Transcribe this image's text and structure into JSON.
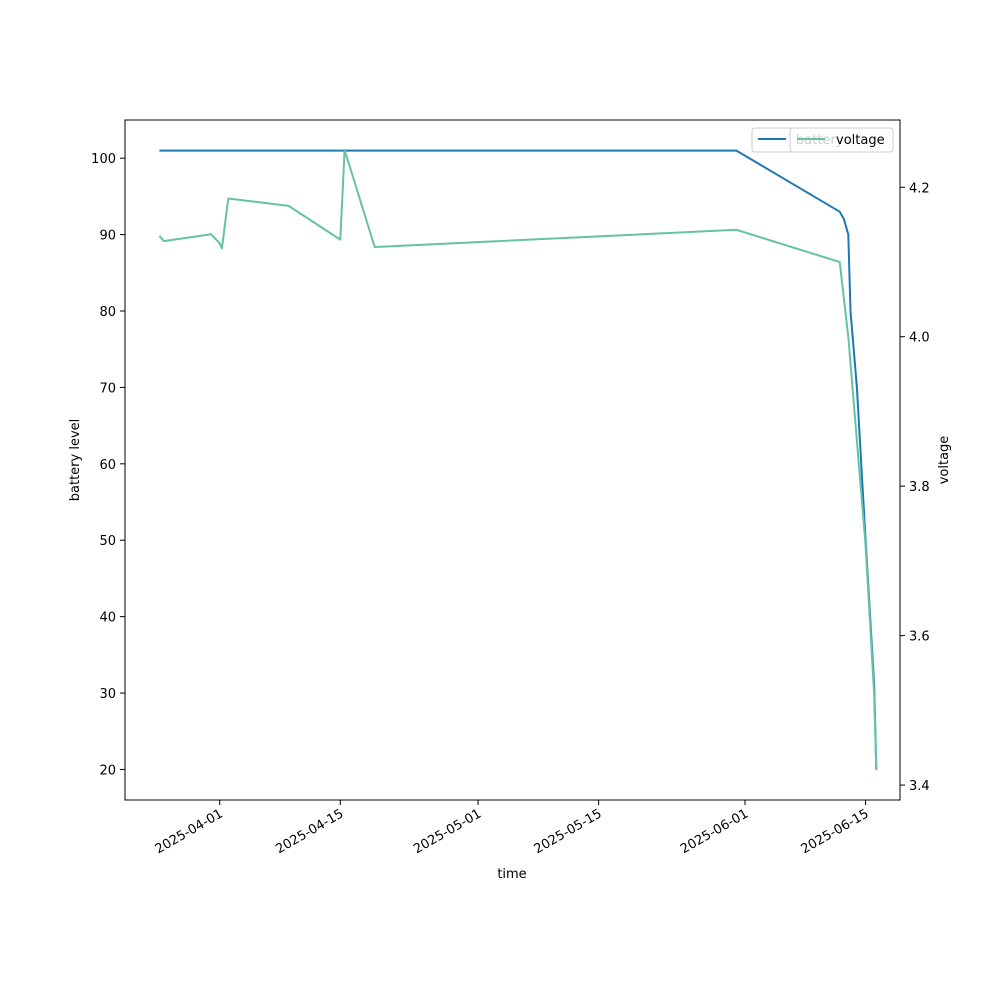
{
  "chart_data": {
    "type": "line",
    "xlabel": "time",
    "ylabel_left": "battery level",
    "ylabel_right": "voltage",
    "x_ticks": [
      "2025-04-01",
      "2025-04-15",
      "2025-05-01",
      "2025-05-15",
      "2025-06-01",
      "2025-06-15"
    ],
    "y_left_ticks": [
      20,
      30,
      40,
      50,
      60,
      70,
      80,
      90,
      100
    ],
    "y_right_ticks": [
      "3.4",
      "3.6",
      "3.8",
      "4.0",
      "4.2"
    ],
    "xlim": [
      "2025-03-21",
      "2025-06-19"
    ],
    "ylim_left": [
      16,
      105
    ],
    "ylim_right": [
      3.38,
      4.29
    ],
    "grid": false,
    "legend_placement": "top-right",
    "series": [
      {
        "name": "battery",
        "axis": "left",
        "color": "#1f77b4",
        "points": [
          [
            "2025-03-25",
            101
          ],
          [
            "2025-05-31",
            101
          ],
          [
            "2025-06-12",
            93
          ],
          [
            "2025-06-12T12:00",
            92
          ],
          [
            "2025-06-13",
            90
          ],
          [
            "2025-06-13T06:00",
            80
          ],
          [
            "2025-06-14",
            70
          ],
          [
            "2025-06-15",
            50
          ],
          [
            "2025-06-16",
            31
          ],
          [
            "2025-06-16T06:00",
            20
          ]
        ]
      },
      {
        "name": "voltage",
        "axis": "right",
        "color": "#66c2a5",
        "points": [
          [
            "2025-03-25",
            4.135
          ],
          [
            "2025-03-25T12:00",
            4.128
          ],
          [
            "2025-03-31",
            4.137
          ],
          [
            "2025-04-01",
            4.125
          ],
          [
            "2025-04-01T06:00",
            4.118
          ],
          [
            "2025-04-02",
            4.185
          ],
          [
            "2025-04-09",
            4.175
          ],
          [
            "2025-04-15",
            4.13
          ],
          [
            "2025-04-15T12:00",
            4.25
          ],
          [
            "2025-04-19",
            4.12
          ],
          [
            "2025-05-31",
            4.143
          ],
          [
            "2025-06-12",
            4.1
          ],
          [
            "2025-06-13",
            4.0
          ],
          [
            "2025-06-15",
            3.72
          ],
          [
            "2025-06-16",
            3.52
          ],
          [
            "2025-06-16T06:00",
            3.42
          ]
        ]
      }
    ]
  }
}
